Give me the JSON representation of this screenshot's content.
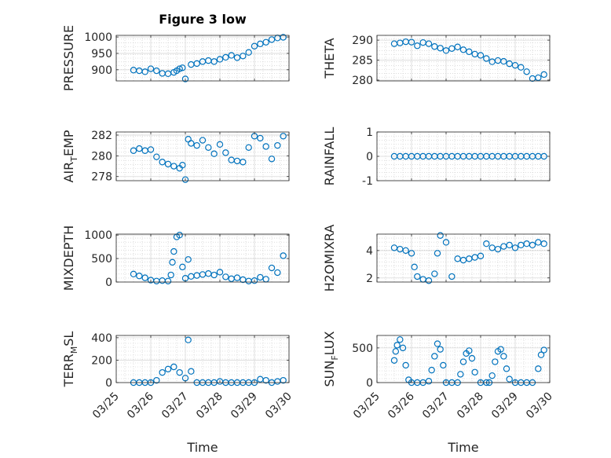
{
  "chart_data": [
    {
      "type": "scatter",
      "title": "Figure 3 low",
      "ylabel": "PRESSURE",
      "xlim": [
        "03/25",
        "03/30"
      ],
      "ylim": [
        866,
        1005
      ],
      "yticks": [
        900,
        950,
        1000
      ],
      "ytick_labels": [
        "900",
        "950",
        "1000"
      ],
      "grid": true,
      "series": [
        {
          "x": [
            "03/25 12:00",
            "03/25 16:00",
            "03/25 20:00",
            "03/26 00:00",
            "03/26 04:00",
            "03/26 08:00",
            "03/26 12:00",
            "03/26 16:00",
            "03/26 18:00",
            "03/26 20:00",
            "03/26 22:00",
            "03/27 00:00",
            "03/27 04:00",
            "03/27 08:00",
            "03/27 12:00",
            "03/27 16:00",
            "03/27 20:00",
            "03/28 00:00",
            "03/28 04:00",
            "03/28 08:00",
            "03/28 12:00",
            "03/28 16:00",
            "03/28 20:00",
            "03/29 00:00",
            "03/29 04:00",
            "03/29 08:00",
            "03/29 12:00",
            "03/29 16:00",
            "03/29 20:00"
          ],
          "y": [
            899,
            897,
            894,
            903,
            897,
            889,
            888,
            892,
            897,
            903,
            906,
            872,
            916,
            919,
            925,
            928,
            925,
            932,
            938,
            944,
            937,
            942,
            953,
            972,
            979,
            984,
            992,
            997,
            999
          ]
        }
      ]
    },
    {
      "type": "scatter",
      "title": "",
      "ylabel": "THETA",
      "xlim": [
        "03/25",
        "03/30"
      ],
      "ylim": [
        279.8,
        291.2
      ],
      "yticks": [
        280,
        285,
        290
      ],
      "ytick_labels": [
        "280",
        "285",
        "290"
      ],
      "grid": true,
      "series": [
        {
          "x": [
            "03/25 12:00",
            "03/25 16:00",
            "03/25 20:00",
            "03/26 00:00",
            "03/26 04:00",
            "03/26 08:00",
            "03/26 12:00",
            "03/26 16:00",
            "03/26 20:00",
            "03/27 00:00",
            "03/27 04:00",
            "03/27 08:00",
            "03/27 12:00",
            "03/27 16:00",
            "03/27 20:00",
            "03/28 00:00",
            "03/28 04:00",
            "03/28 08:00",
            "03/28 12:00",
            "03/28 16:00",
            "03/28 20:00",
            "03/29 00:00",
            "03/29 04:00",
            "03/29 08:00",
            "03/29 12:00",
            "03/29 16:00",
            "03/29 20:00"
          ],
          "y": [
            289.1,
            289.3,
            289.6,
            289.5,
            288.6,
            289.4,
            289.1,
            288.4,
            288.0,
            287.4,
            287.9,
            288.3,
            287.6,
            287.1,
            286.5,
            286.2,
            285.4,
            284.6,
            284.9,
            284.7,
            284.1,
            283.7,
            283.2,
            282.1,
            280.4,
            280.6,
            281.4
          ]
        }
      ]
    },
    {
      "type": "scatter",
      "title": "",
      "ylabel": "AIR_TEMP",
      "ylabel_display": {
        "main": "AIR",
        "sub": "T",
        "rest": "EMP"
      },
      "xlim": [
        "03/25",
        "03/30"
      ],
      "ylim": [
        277.6,
        282.3
      ],
      "yticks": [
        278,
        280,
        282
      ],
      "ytick_labels": [
        "278",
        "280",
        "282"
      ],
      "grid": true,
      "series": [
        {
          "x": [
            "03/25 12:00",
            "03/25 16:00",
            "03/25 20:00",
            "03/26 00:00",
            "03/26 04:00",
            "03/26 08:00",
            "03/26 12:00",
            "03/26 16:00",
            "03/26 20:00",
            "03/26 22:00",
            "03/27 00:00",
            "03/27 02:00",
            "03/27 04:00",
            "03/27 08:00",
            "03/27 12:00",
            "03/27 16:00",
            "03/27 20:00",
            "03/28 00:00",
            "03/28 04:00",
            "03/28 08:00",
            "03/28 12:00",
            "03/28 16:00",
            "03/28 20:00",
            "03/29 00:00",
            "03/29 04:00",
            "03/29 08:00",
            "03/29 12:00",
            "03/29 16:00",
            "03/29 20:00"
          ],
          "y": [
            280.5,
            280.7,
            280.5,
            280.6,
            279.9,
            279.4,
            279.2,
            279.0,
            278.8,
            279.1,
            277.7,
            281.6,
            281.2,
            281.0,
            281.5,
            280.8,
            280.2,
            281.1,
            280.3,
            279.6,
            279.5,
            279.4,
            280.8,
            281.9,
            281.7,
            280.9,
            279.7,
            281.0,
            281.9
          ]
        }
      ]
    },
    {
      "type": "scatter",
      "title": "",
      "ylabel": "RAINFALL",
      "xlim": [
        "03/25",
        "03/30"
      ],
      "ylim": [
        -1,
        1
      ],
      "yticks": [
        -1,
        0,
        1
      ],
      "ytick_labels": [
        "-1",
        "0",
        "1"
      ],
      "grid": true,
      "series": [
        {
          "x": [
            "03/25 12:00",
            "03/25 16:00",
            "03/25 20:00",
            "03/26 00:00",
            "03/26 04:00",
            "03/26 08:00",
            "03/26 12:00",
            "03/26 16:00",
            "03/26 20:00",
            "03/27 00:00",
            "03/27 04:00",
            "03/27 08:00",
            "03/27 12:00",
            "03/27 16:00",
            "03/27 20:00",
            "03/28 00:00",
            "03/28 04:00",
            "03/28 08:00",
            "03/28 12:00",
            "03/28 16:00",
            "03/28 20:00",
            "03/29 00:00",
            "03/29 04:00",
            "03/29 08:00",
            "03/29 12:00",
            "03/29 16:00",
            "03/29 20:00"
          ],
          "y": [
            0,
            0,
            0,
            0,
            0,
            0,
            0,
            0,
            0,
            0,
            0,
            0,
            0,
            0,
            0,
            0,
            0,
            0,
            0,
            0,
            0,
            0,
            0,
            0,
            0,
            0,
            0
          ]
        }
      ]
    },
    {
      "type": "scatter",
      "title": "",
      "ylabel": "MIXDEPTH",
      "xlim": [
        "03/25",
        "03/30"
      ],
      "ylim": [
        0,
        1020
      ],
      "yticks": [
        0,
        500,
        1000
      ],
      "ytick_labels": [
        "0",
        "500",
        "1000"
      ],
      "grid": true,
      "series": [
        {
          "x": [
            "03/25 12:00",
            "03/25 16:00",
            "03/25 20:00",
            "03/26 00:00",
            "03/26 04:00",
            "03/26 08:00",
            "03/26 12:00",
            "03/26 14:00",
            "03/26 15:00",
            "03/26 16:00",
            "03/26 18:00",
            "03/26 20:00",
            "03/26 22:00",
            "03/27 00:00",
            "03/27 02:00",
            "03/27 04:00",
            "03/27 08:00",
            "03/27 12:00",
            "03/27 16:00",
            "03/27 20:00",
            "03/28 00:00",
            "03/28 04:00",
            "03/28 08:00",
            "03/28 12:00",
            "03/28 16:00",
            "03/28 20:00",
            "03/29 00:00",
            "03/29 04:00",
            "03/29 08:00",
            "03/29 12:00",
            "03/29 16:00",
            "03/29 20:00"
          ],
          "y": [
            170,
            130,
            90,
            40,
            20,
            30,
            20,
            150,
            420,
            650,
            960,
            1000,
            320,
            80,
            480,
            120,
            140,
            160,
            180,
            150,
            210,
            110,
            70,
            90,
            50,
            20,
            30,
            100,
            60,
            300,
            200,
            560
          ]
        }
      ]
    },
    {
      "type": "scatter",
      "title": "",
      "ylabel": "H2OMIXRA",
      "xlim": [
        "03/25",
        "03/30"
      ],
      "ylim": [
        1.7,
        5.2
      ],
      "yticks": [
        2,
        4
      ],
      "ytick_labels": [
        "2",
        "4"
      ],
      "grid": true,
      "series": [
        {
          "x": [
            "03/25 12:00",
            "03/25 16:00",
            "03/25 20:00",
            "03/26 00:00",
            "03/26 02:00",
            "03/26 04:00",
            "03/26 08:00",
            "03/26 12:00",
            "03/26 16:00",
            "03/26 18:00",
            "03/26 20:00",
            "03/27 00:00",
            "03/27 04:00",
            "03/27 08:00",
            "03/27 12:00",
            "03/27 16:00",
            "03/27 20:00",
            "03/28 00:00",
            "03/28 04:00",
            "03/28 08:00",
            "03/28 12:00",
            "03/28 16:00",
            "03/28 20:00",
            "03/29 00:00",
            "03/29 04:00",
            "03/29 08:00",
            "03/29 12:00",
            "03/29 16:00",
            "03/29 20:00"
          ],
          "y": [
            4.2,
            4.1,
            4.0,
            3.8,
            2.8,
            2.1,
            1.9,
            1.8,
            2.3,
            3.8,
            5.1,
            4.6,
            2.1,
            3.4,
            3.3,
            3.4,
            3.5,
            3.6,
            4.5,
            4.2,
            4.1,
            4.3,
            4.4,
            4.2,
            4.4,
            4.5,
            4.4,
            4.6,
            4.5
          ]
        }
      ]
    },
    {
      "type": "scatter",
      "title": "",
      "ylabel": "TERR_MSL",
      "ylabel_display": {
        "main": "TERR",
        "sub": "M",
        "rest": "SL"
      },
      "xlabel": "Time",
      "xlim": [
        "03/25",
        "03/30"
      ],
      "ylim": [
        0,
        420
      ],
      "yticks": [
        0,
        200,
        400
      ],
      "ytick_labels": [
        "0",
        "200",
        "400"
      ],
      "xticks": [
        "03/25",
        "03/26",
        "03/27",
        "03/28",
        "03/29",
        "03/30"
      ],
      "grid": true,
      "series": [
        {
          "x": [
            "03/25 12:00",
            "03/25 16:00",
            "03/25 20:00",
            "03/26 00:00",
            "03/26 04:00",
            "03/26 08:00",
            "03/26 12:00",
            "03/26 16:00",
            "03/26 20:00",
            "03/27 00:00",
            "03/27 02:00",
            "03/27 04:00",
            "03/27 08:00",
            "03/27 12:00",
            "03/27 16:00",
            "03/27 20:00",
            "03/28 00:00",
            "03/28 04:00",
            "03/28 08:00",
            "03/28 12:00",
            "03/28 16:00",
            "03/28 20:00",
            "03/29 00:00",
            "03/29 04:00",
            "03/29 08:00",
            "03/29 12:00",
            "03/29 16:00",
            "03/29 20:00"
          ],
          "y": [
            0,
            0,
            0,
            0,
            20,
            90,
            120,
            140,
            90,
            40,
            380,
            100,
            0,
            0,
            0,
            0,
            10,
            0,
            0,
            0,
            0,
            0,
            0,
            30,
            20,
            0,
            10,
            20
          ]
        }
      ]
    },
    {
      "type": "scatter",
      "title": "",
      "ylabel": "SUN_FLUX",
      "ylabel_display": {
        "main": "SUN",
        "sub": "F",
        "rest": "LUX"
      },
      "xlabel": "Time",
      "xlim": [
        "03/25",
        "03/30"
      ],
      "ylim": [
        0,
        680
      ],
      "yticks": [
        0,
        500
      ],
      "ytick_labels": [
        "0",
        "500"
      ],
      "xticks": [
        "03/25",
        "03/26",
        "03/27",
        "03/28",
        "03/29",
        "03/30"
      ],
      "grid": true,
      "series": [
        {
          "x": [
            "03/25 12:00",
            "03/25 13:00",
            "03/25 14:00",
            "03/25 16:00",
            "03/25 18:00",
            "03/25 20:00",
            "03/25 22:00",
            "03/26 00:00",
            "03/26 04:00",
            "03/26 08:00",
            "03/26 12:00",
            "03/26 14:00",
            "03/26 16:00",
            "03/26 18:00",
            "03/26 20:00",
            "03/26 22:00",
            "03/27 00:00",
            "03/27 04:00",
            "03/27 08:00",
            "03/27 10:00",
            "03/27 12:00",
            "03/27 14:00",
            "03/27 16:00",
            "03/27 18:00",
            "03/27 20:00",
            "03/28 00:00",
            "03/28 04:00",
            "03/28 06:00",
            "03/28 08:00",
            "03/28 10:00",
            "03/28 12:00",
            "03/28 14:00",
            "03/28 16:00",
            "03/28 18:00",
            "03/28 20:00",
            "03/29 00:00",
            "03/29 04:00",
            "03/29 08:00",
            "03/29 12:00",
            "03/29 16:00",
            "03/29 18:00",
            "03/29 20:00"
          ],
          "y": [
            320,
            450,
            540,
            620,
            500,
            250,
            40,
            0,
            0,
            0,
            20,
            180,
            380,
            560,
            480,
            250,
            0,
            0,
            0,
            120,
            300,
            420,
            460,
            350,
            150,
            0,
            0,
            0,
            100,
            300,
            450,
            480,
            380,
            200,
            50,
            0,
            0,
            0,
            0,
            200,
            400,
            470
          ]
        }
      ]
    }
  ]
}
